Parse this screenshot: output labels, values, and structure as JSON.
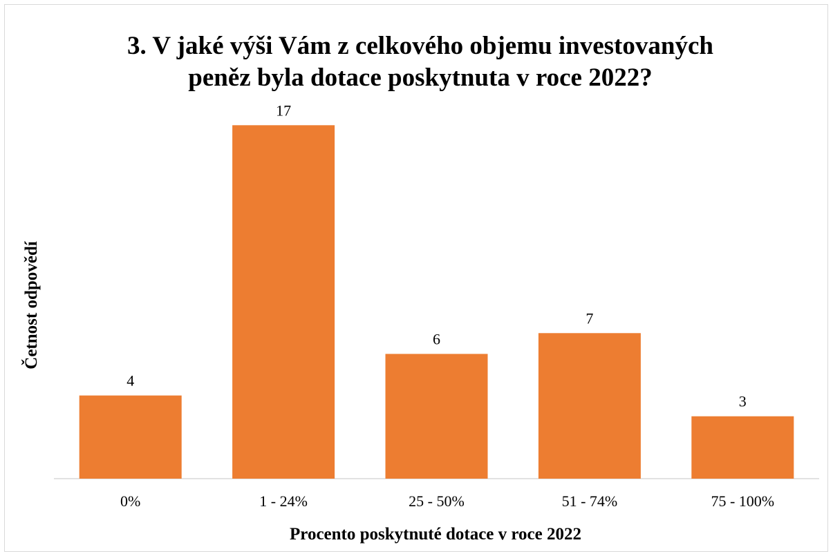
{
  "chart_data": {
    "type": "bar",
    "title_lines": [
      "3. V jaké výši Vám z celkového objemu investovaných",
      "peněz byla dotace poskytnuta v roce 2022?"
    ],
    "xlabel": "Procento poskytnuté dotace v roce 2022",
    "ylabel": "Četnost odpovědí",
    "categories": [
      "0%",
      "1 - 24%",
      "25 - 50%",
      "51 - 74%",
      "75 - 100%"
    ],
    "values": [
      4,
      17,
      6,
      7,
      3
    ],
    "ylim": [
      0,
      17
    ],
    "grid": false,
    "legend": "none",
    "bar_color": "#ED7D31",
    "axis_color": "#d9d9d9"
  }
}
